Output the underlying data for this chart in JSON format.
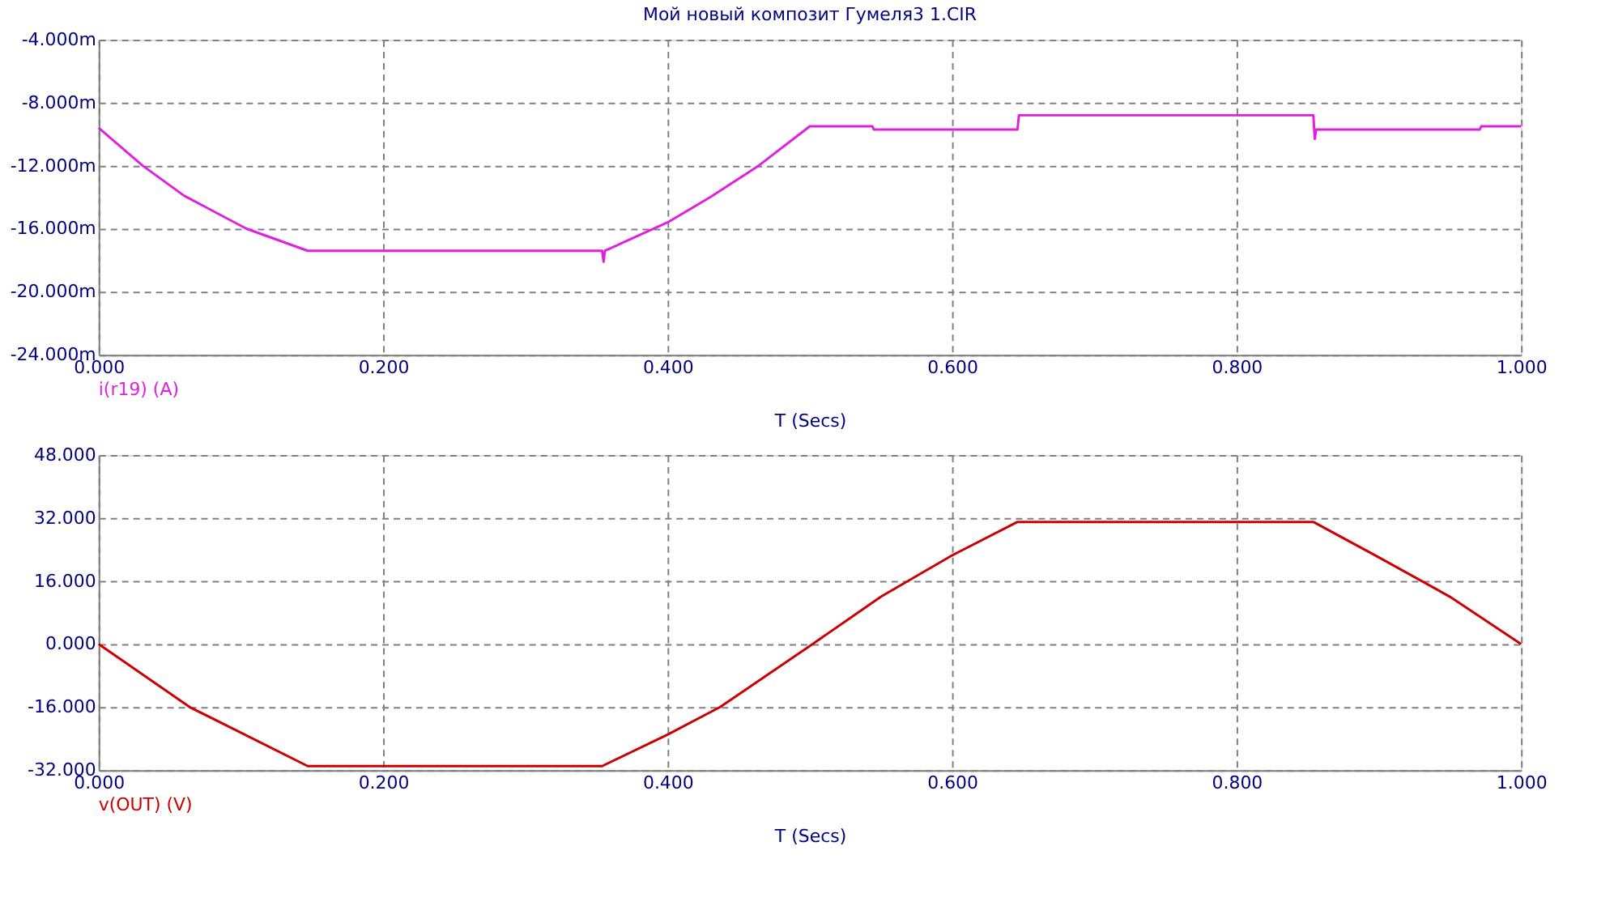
{
  "chart_data": [
    {
      "type": "line",
      "title": "Мой новый композит Гумеля3 1.CIR",
      "xlabel": "T (Secs)",
      "xlim": [
        0,
        1
      ],
      "xticks": [
        {
          "value": 0,
          "label": "0.000"
        },
        {
          "value": 0.2,
          "label": "0.200"
        },
        {
          "value": 0.4,
          "label": "0.400"
        },
        {
          "value": 0.6,
          "label": "0.600"
        },
        {
          "value": 0.8,
          "label": "0.800"
        },
        {
          "value": 1,
          "label": "1.000"
        }
      ],
      "ylim": [
        -24,
        -4
      ],
      "yticks": [
        {
          "value": -24,
          "label": "-24.000m"
        },
        {
          "value": -20,
          "label": "-20.000m"
        },
        {
          "value": -16,
          "label": "-16.000m"
        },
        {
          "value": -12,
          "label": "-12.000m"
        },
        {
          "value": -8,
          "label": "-8.000m"
        },
        {
          "value": -4,
          "label": "-4.000m"
        }
      ],
      "grid": true,
      "line_style": "solid",
      "series": [
        {
          "name": "i(r19) (A)",
          "color": "#e020e0",
          "x": [
            0,
            0.031,
            0.06,
            0.104,
            0.147,
            0.354,
            0.355,
            0.356,
            0.4,
            0.43,
            0.464,
            0.5,
            0.544,
            0.545,
            0.646,
            0.647,
            0.854,
            0.855,
            0.856,
            0.971,
            0.972,
            1.0
          ],
          "values": [
            -9.6,
            -12,
            -13.9,
            -16,
            -17.4,
            -17.4,
            -18.1,
            -17.4,
            -15.6,
            -14.0,
            -12,
            -9.5,
            -9.5,
            -9.7,
            -9.7,
            -8.8,
            -8.8,
            -10.3,
            -9.7,
            -9.7,
            -9.5,
            -9.5
          ]
        }
      ]
    },
    {
      "type": "line",
      "xlabel": "T (Secs)",
      "xlim": [
        0,
        1
      ],
      "xticks": [
        {
          "value": 0,
          "label": "0.000"
        },
        {
          "value": 0.2,
          "label": "0.200"
        },
        {
          "value": 0.4,
          "label": "0.400"
        },
        {
          "value": 0.6,
          "label": "0.600"
        },
        {
          "value": 0.8,
          "label": "0.800"
        },
        {
          "value": 1,
          "label": "1.000"
        }
      ],
      "ylim": [
        -32,
        48
      ],
      "yticks": [
        {
          "value": -32,
          "label": "-32.000"
        },
        {
          "value": -16,
          "label": "-16.000"
        },
        {
          "value": 0,
          "label": "0.000"
        },
        {
          "value": 16,
          "label": "16.000"
        },
        {
          "value": 32,
          "label": "32.000"
        },
        {
          "value": 48,
          "label": "48.000"
        }
      ],
      "grid": true,
      "line_style": "solid",
      "series": [
        {
          "name": "v(OUT) (V)",
          "color": "#cc0000",
          "x": [
            0,
            0.064,
            0.147,
            0.354,
            0.4,
            0.437,
            0.502,
            0.55,
            0.6,
            0.646,
            0.854,
            0.9,
            0.95,
            1.0
          ],
          "values": [
            0,
            -16,
            -31,
            -31,
            -23,
            -16,
            0,
            12,
            22.5,
            31,
            31,
            22,
            12,
            0
          ]
        }
      ]
    }
  ]
}
